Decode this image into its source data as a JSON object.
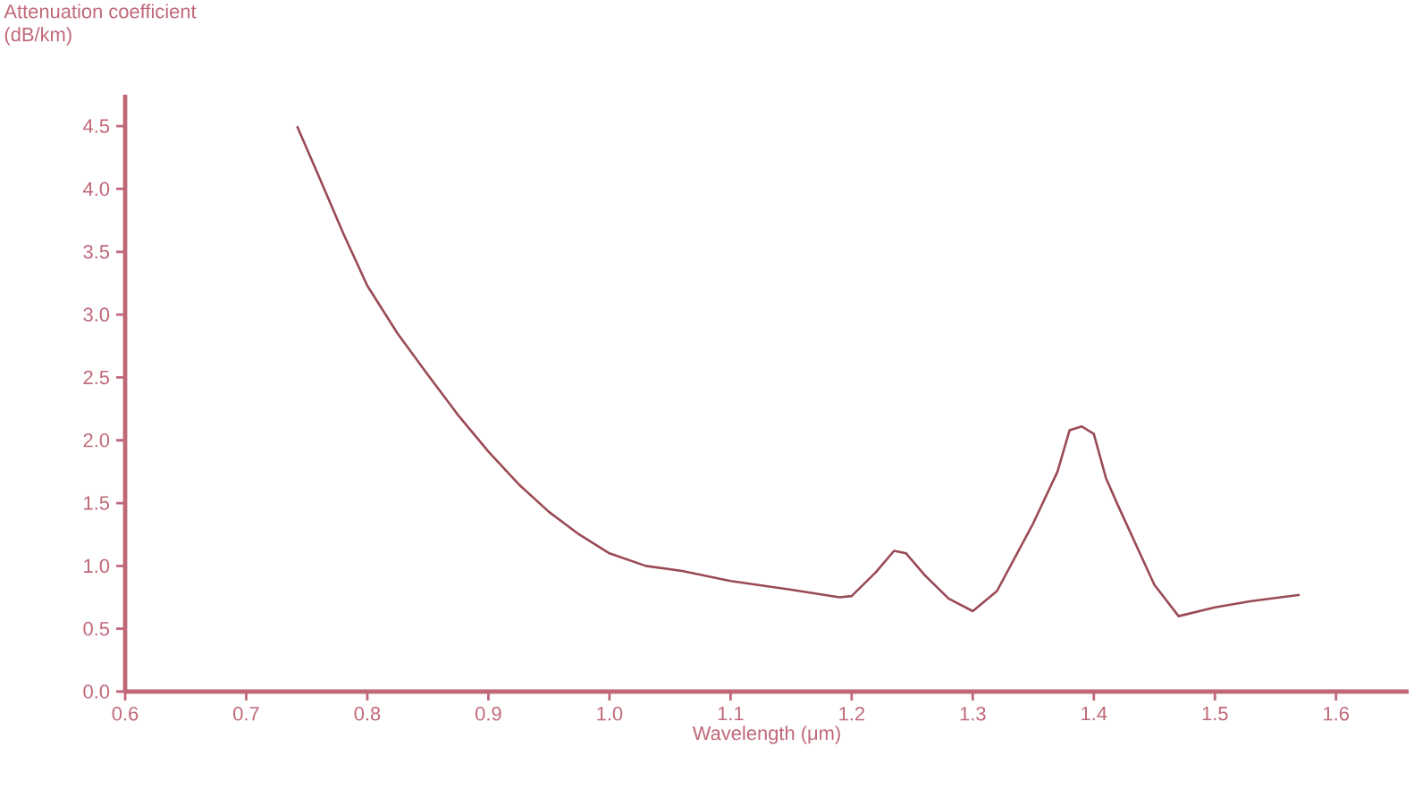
{
  "chart_data": {
    "type": "line",
    "xlabel": "Wavelength (μm)",
    "ylabel": "Attenuation coefficient\n(dB/km)",
    "xlim": [
      0.6,
      1.66
    ],
    "ylim": [
      0,
      4.75
    ],
    "xticks": [
      {
        "value": 0.6,
        "label": "0.6"
      },
      {
        "value": 0.7,
        "label": "0.7"
      },
      {
        "value": 0.8,
        "label": "0.8"
      },
      {
        "value": 0.9,
        "label": "0.9"
      },
      {
        "value": 1.0,
        "label": "1.0"
      },
      {
        "value": 1.1,
        "label": "1.1"
      },
      {
        "value": 1.2,
        "label": "1.2"
      },
      {
        "value": 1.3,
        "label": "1.3"
      },
      {
        "value": 1.4,
        "label": "1.4"
      },
      {
        "value": 1.5,
        "label": "1.5"
      },
      {
        "value": 1.6,
        "label": "1.6"
      }
    ],
    "yticks": [
      {
        "value": 0,
        "label": "0.0"
      },
      {
        "value": 0.5,
        "label": "0.5"
      },
      {
        "value": 1.0,
        "label": "1.0"
      },
      {
        "value": 1.5,
        "label": "1.5"
      },
      {
        "value": 2.0,
        "label": "2.0"
      },
      {
        "value": 2.5,
        "label": "2.5"
      },
      {
        "value": 3.0,
        "label": "3.0"
      },
      {
        "value": 3.5,
        "label": "3.5"
      },
      {
        "value": 4.0,
        "label": "4.0"
      },
      {
        "value": 4.5,
        "label": "4.5"
      }
    ],
    "grid": false,
    "marker": "none",
    "line_style": "solid",
    "series": [
      {
        "color": "#9a4a55",
        "x": [
          0.742,
          0.76,
          0.78,
          0.8,
          0.825,
          0.85,
          0.875,
          0.9,
          0.925,
          0.95,
          0.975,
          1.0,
          1.03,
          1.06,
          1.1,
          1.15,
          1.19,
          1.2,
          1.22,
          1.235,
          1.245,
          1.26,
          1.28,
          1.3,
          1.32,
          1.35,
          1.37,
          1.38,
          1.39,
          1.4,
          1.41,
          1.42,
          1.45,
          1.47,
          1.5,
          1.53,
          1.57
        ],
        "values": [
          4.5,
          4.1,
          3.65,
          3.23,
          2.85,
          2.52,
          2.2,
          1.91,
          1.65,
          1.43,
          1.25,
          1.1,
          1.0,
          0.96,
          0.88,
          0.81,
          0.75,
          0.76,
          0.95,
          1.12,
          1.1,
          0.93,
          0.74,
          0.64,
          0.8,
          1.34,
          1.75,
          2.08,
          2.11,
          2.05,
          1.7,
          1.48,
          0.85,
          0.6,
          0.67,
          0.72,
          0.77
        ]
      }
    ]
  }
}
